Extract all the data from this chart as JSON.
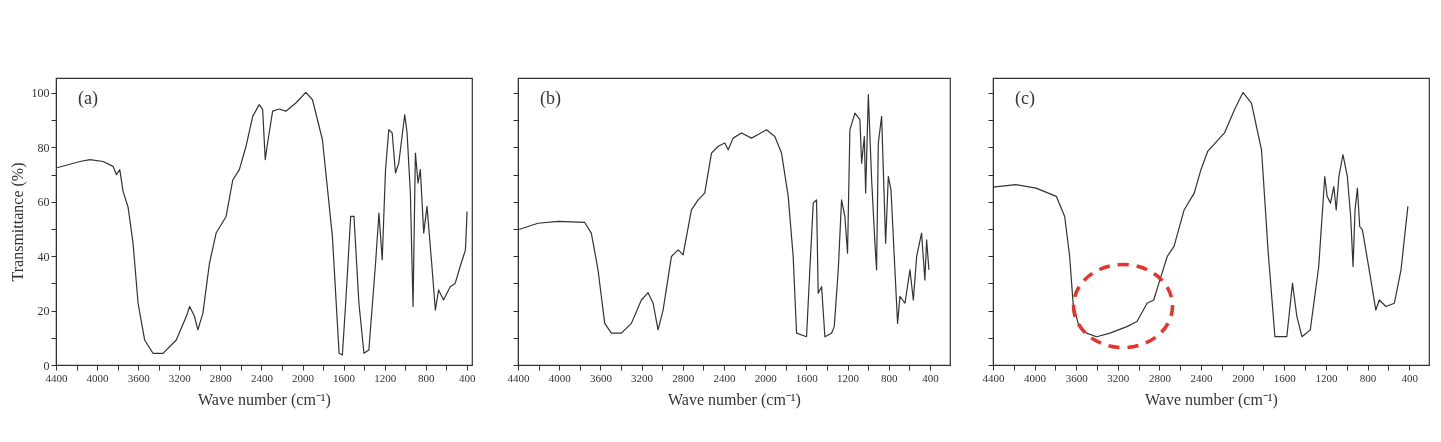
{
  "chart_data": [
    {
      "type": "line",
      "xlabel": "Wave number (cm⁻¹)",
      "ylabel": "Transmittance (%)",
      "annotations": [
        "(a)"
      ],
      "grid": false,
      "marker": "none",
      "line_style": "solid",
      "xlim": [
        4400,
        350
      ],
      "ylim": [
        0,
        105.5
      ],
      "xticks": [
        4400,
        {
          "value": 4200,
          "label": null
        },
        4000,
        {
          "value": 3800,
          "label": null
        },
        3600,
        {
          "value": 3400,
          "label": null
        },
        3200,
        {
          "value": 3000,
          "label": null
        },
        2800,
        {
          "value": 2600,
          "label": null
        },
        2400,
        {
          "value": 2200,
          "label": null
        },
        2000,
        {
          "value": 1800,
          "label": null
        },
        1600,
        {
          "value": 1400,
          "label": null
        },
        1200,
        {
          "value": 1000,
          "label": null
        },
        800,
        {
          "value": 600,
          "label": null
        },
        400
      ],
      "yticks": [
        0,
        {
          "value": 10,
          "label": null
        },
        20,
        {
          "value": 30,
          "label": null
        },
        40,
        {
          "value": 50,
          "label": null
        },
        60,
        {
          "value": 70,
          "label": null
        },
        80,
        {
          "value": 90,
          "label": null
        },
        100
      ],
      "x": [
        4400,
        4167,
        4070,
        3941,
        3844,
        3812,
        3779,
        3747,
        3698,
        3650,
        3601,
        3537,
        3456,
        3359,
        3229,
        3132,
        3099,
        3051,
        3019,
        2970,
        2906,
        2841,
        2744,
        2679,
        2615,
        2550,
        2485,
        2421,
        2388,
        2363,
        2340,
        2291,
        2227,
        2162,
        2065,
        1968,
        1903,
        1806,
        1709,
        1644,
        1612,
        1580,
        1531,
        1499,
        1451,
        1402,
        1354,
        1289,
        1256,
        1224,
        1192,
        1160,
        1127,
        1095,
        1063,
        1031,
        1005,
        982,
        950,
        924,
        901,
        875,
        853,
        820,
        788,
        740,
        707,
        675,
        627,
        562,
        514,
        465,
        414,
        398
      ],
      "series": [
        {
          "color": "#333333",
          "values": [
            72.4,
            74.8,
            75.5,
            74.8,
            73,
            70,
            71.8,
            63.8,
            58,
            44.8,
            22.7,
            9.2,
            4.3,
            4.3,
            9.2,
            17.8,
            21.5,
            17.8,
            12.9,
            19,
            37.4,
            48.5,
            54.6,
            68,
            71.8,
            80.4,
            91.4,
            95.7,
            93.9,
            75.5,
            81.6,
            93.3,
            94.1,
            93.3,
            96.3,
            100.2,
            97.5,
            82.8,
            47.2,
            4.3,
            3.7,
            22.7,
            54.6,
            54.6,
            22.7,
            4.3,
            5.5,
            37.4,
            55.8,
            38.7,
            71.8,
            86.5,
            85.3,
            70.6,
            74.2,
            84,
            92,
            85.3,
            63.2,
            21.5,
            77.9,
            66.9,
            71.8,
            48.5,
            58.3,
            36.2,
            20.2,
            27.6,
            23.9,
            28.8,
            30,
            36.2,
            42.3,
            56.4
          ]
        }
      ]
    },
    {
      "type": "line",
      "xlabel": "Wave number (cm⁻¹)",
      "annotations": [
        "(b)"
      ],
      "grid": false,
      "marker": "none",
      "line_style": "solid",
      "tick_labels": "x",
      "xlim": [
        4400,
        205
      ],
      "ylim": [
        0,
        105.5
      ],
      "xticks": [
        4400,
        {
          "value": 4200,
          "label": null
        },
        4000,
        {
          "value": 3800,
          "label": null
        },
        3600,
        {
          "value": 3400,
          "label": null
        },
        3200,
        {
          "value": 3000,
          "label": null
        },
        2800,
        {
          "value": 2600,
          "label": null
        },
        2400,
        {
          "value": 2200,
          "label": null
        },
        2000,
        {
          "value": 1800,
          "label": null
        },
        1600,
        {
          "value": 1400,
          "label": null
        },
        1200,
        {
          "value": 1000,
          "label": null
        },
        800,
        {
          "value": 600,
          "label": null
        },
        400
      ],
      "yticks": [
        0,
        {
          "value": 10,
          "label": null
        },
        20,
        {
          "value": 30,
          "label": null
        },
        40,
        {
          "value": 50,
          "label": null
        },
        60,
        {
          "value": 70,
          "label": null
        },
        80,
        {
          "value": 90,
          "label": null
        },
        100
      ],
      "x": [
        4400,
        4206,
        4011,
        3752,
        3688,
        3623,
        3558,
        3493,
        3396,
        3299,
        3202,
        3137,
        3088,
        3040,
        2991,
        2910,
        2845,
        2797,
        2716,
        2651,
        2587,
        2521,
        2456,
        2392,
        2359,
        2311,
        2230,
        2133,
        2068,
        1987,
        1906,
        1841,
        1776,
        1728,
        1695,
        1598,
        1566,
        1533,
        1501,
        1485,
        1452,
        1420,
        1355,
        1329,
        1290,
        1258,
        1226,
        1200,
        1177,
        1128,
        1080,
        1063,
        1037,
        1024,
        998,
        966,
        934,
        918,
        901,
        869,
        830,
        804,
        778,
        740,
        714,
        691,
        642,
        594,
        561,
        529,
        481,
        449,
        432,
        410
      ],
      "series": [
        {
          "color": "#333333",
          "values": [
            49.7,
            52.1,
            52.8,
            52.4,
            48.5,
            35,
            15.3,
            11.7,
            11.7,
            15.3,
            23.9,
            26.6,
            22.7,
            12.9,
            20.2,
            39.9,
            42.3,
            40.5,
            57,
            60.7,
            63.2,
            77.9,
            80.4,
            81.6,
            79.1,
            83.4,
            85.3,
            83.4,
            84.7,
            86.5,
            84,
            77.9,
            62,
            39.9,
            11.7,
            10.4,
            35,
            59.5,
            60.7,
            26.4,
            28.8,
            10.4,
            11.7,
            14.1,
            35,
            60.7,
            54.6,
            41.1,
            86.5,
            92.6,
            90.2,
            74.2,
            84,
            63.2,
            99.4,
            68.1,
            44.8,
            35,
            81.6,
            91.4,
            44.8,
            69.3,
            64.4,
            35,
            15.3,
            25.2,
            22.7,
            35,
            23.9,
            39.9,
            48.5,
            31.3,
            46,
            35
          ]
        }
      ]
    },
    {
      "type": "line",
      "xlabel": "Wave number (cm⁻¹)",
      "annotations": [
        "(c)"
      ],
      "grid": false,
      "marker": "none",
      "line_style": "solid",
      "tick_labels": "x",
      "xlim": [
        4400,
        209
      ],
      "ylim": [
        0,
        105.5
      ],
      "xticks": [
        4400,
        {
          "value": 4200,
          "label": null
        },
        4000,
        {
          "value": 3800,
          "label": null
        },
        3600,
        {
          "value": 3400,
          "label": null
        },
        3200,
        {
          "value": 3000,
          "label": null
        },
        2800,
        {
          "value": 2600,
          "label": null
        },
        2400,
        {
          "value": 2200,
          "label": null
        },
        2000,
        {
          "value": 1800,
          "label": null
        },
        1600,
        {
          "value": 1400,
          "label": null
        },
        1200,
        {
          "value": 1000,
          "label": null
        },
        800,
        {
          "value": 600,
          "label": null
        },
        400
      ],
      "yticks": [
        0,
        {
          "value": 10,
          "label": null
        },
        20,
        {
          "value": 30,
          "label": null
        },
        40,
        {
          "value": 50,
          "label": null
        },
        60,
        {
          "value": 70,
          "label": null
        },
        80,
        {
          "value": 90,
          "label": null
        },
        100
      ],
      "x": [
        4400,
        4180,
        3986,
        3792,
        3711,
        3663,
        3630,
        3582,
        3501,
        3404,
        3275,
        3113,
        3016,
        2919,
        2855,
        2806,
        2725,
        2660,
        2563,
        2466,
        2401,
        2337,
        2175,
        2078,
        1997,
        1916,
        1819,
        1754,
        1690,
        1576,
        1521,
        1479,
        1430,
        1350,
        1269,
        1211,
        1188,
        1156,
        1124,
        1101,
        1075,
        1036,
        994,
        962,
        939,
        920,
        897,
        875,
        849,
        784,
        720,
        687,
        623,
        542,
        478,
        412
      ],
      "series": [
        {
          "color": "#333333",
          "values": [
            65.4,
            66.3,
            65,
            62,
            54.6,
            39.9,
            22.7,
            15.3,
            11.7,
            10.4,
            11.7,
            14.1,
            16,
            22.7,
            23.9,
            30,
            39.9,
            43.6,
            57,
            63.2,
            71.8,
            78.5,
            85.3,
            93.9,
            100.2,
            96.3,
            79.1,
            41.1,
            10.4,
            10.4,
            30,
            17.8,
            10.4,
            12.9,
            36.2,
            69.3,
            62,
            59.5,
            65.6,
            57,
            69.3,
            77.3,
            69.3,
            54.6,
            36.2,
            57,
            65,
            50.9,
            49.7,
            35,
            20.2,
            23.9,
            21.5,
            22.7,
            35,
            58.3
          ]
        }
      ]
    }
  ]
}
